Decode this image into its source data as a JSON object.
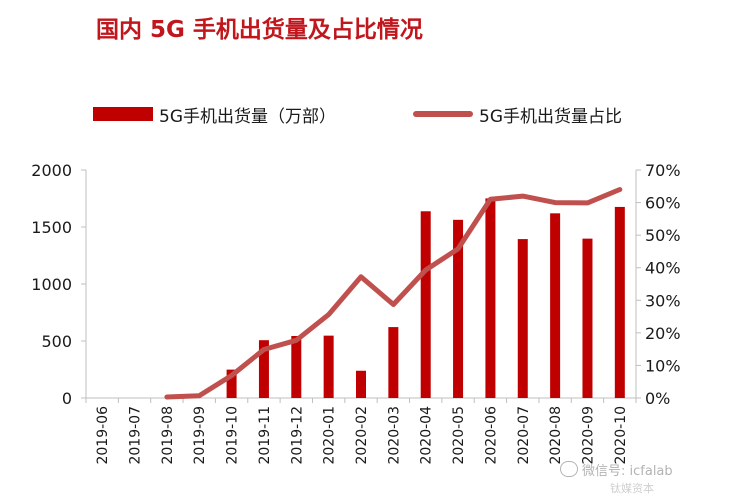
{
  "chart_data": {
    "type": "bar",
    "title": "国内 5G 手机出货量及占比情况",
    "categories": [
      "2019-06",
      "2019-07",
      "2019-08",
      "2019-09",
      "2019-10",
      "2019-11",
      "2019-12",
      "2020-01",
      "2020-02",
      "2020-03",
      "2020-04",
      "2020-05",
      "2020-06",
      "2020-07",
      "2020-08",
      "2020-09",
      "2020-10"
    ],
    "series": [
      {
        "name": "5G手机出货量（万部）",
        "type": "bar",
        "axis": "left",
        "color": "#c00000",
        "values": [
          0,
          0,
          0,
          0,
          249,
          507,
          544,
          547,
          239,
          622,
          1638,
          1563,
          1751,
          1394,
          1620,
          1398,
          1676
        ]
      },
      {
        "name": "5G手机出货量占比",
        "type": "line",
        "axis": "right",
        "color": "#c0504d",
        "values": [
          null,
          null,
          0.3,
          0.7,
          6.9,
          14.9,
          17.7,
          25.6,
          37.2,
          28.7,
          39.3,
          45.8,
          61.0,
          62.0,
          60.0,
          59.9,
          64.0
        ]
      }
    ],
    "y_left": {
      "lim": [
        0,
        2000
      ],
      "ticks": [
        0,
        500,
        1000,
        1500,
        2000
      ],
      "tick_labels": [
        "0",
        "500",
        "1000",
        "1500",
        "2000"
      ]
    },
    "y_right": {
      "lim": [
        0,
        70
      ],
      "ticks": [
        0,
        10,
        20,
        30,
        40,
        50,
        60,
        70
      ],
      "tick_labels": [
        "0%",
        "10%",
        "20%",
        "30%",
        "40%",
        "50%",
        "60%",
        "70%"
      ]
    },
    "xlabel": "",
    "ylabel": "",
    "grid": false,
    "legend_position": "top"
  },
  "watermark": {
    "text": "微信号: icfalab",
    "subtext": "钛媒资本"
  }
}
